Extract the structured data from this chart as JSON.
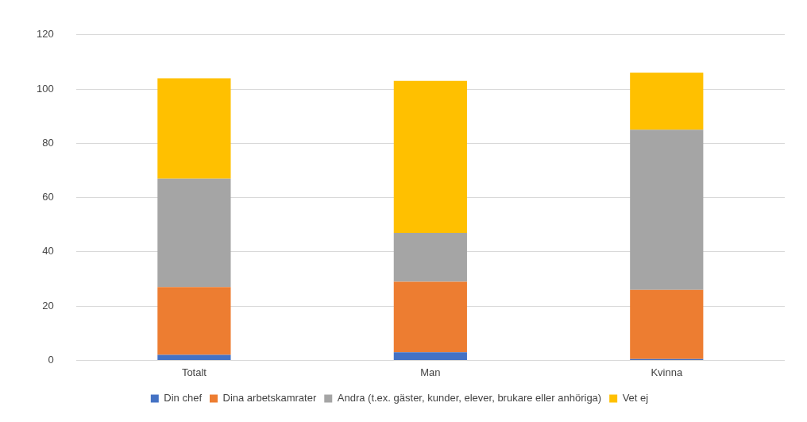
{
  "chart_data": {
    "type": "bar",
    "stacked": true,
    "categories": [
      "Totalt",
      "Man",
      "Kvinna"
    ],
    "series": [
      {
        "name": "Din chef",
        "color": "#4472c4",
        "values": [
          2,
          3,
          0.5
        ]
      },
      {
        "name": "Dina arbetskamrater",
        "color": "#ed7d31",
        "values": [
          25,
          26,
          25.5
        ]
      },
      {
        "name": "Andra (t.ex. gäster, kunder, elever, brukare eller anhöriga)",
        "color": "#a5a5a5",
        "values": [
          40,
          18,
          59
        ]
      },
      {
        "name": "Vet ej",
        "color": "#ffc000",
        "values": [
          37,
          56,
          21
        ]
      }
    ],
    "ylim": [
      0,
      120
    ],
    "yticks": [
      0,
      20,
      40,
      60,
      80,
      100,
      120
    ],
    "grid": "y",
    "legend": "bottom"
  }
}
